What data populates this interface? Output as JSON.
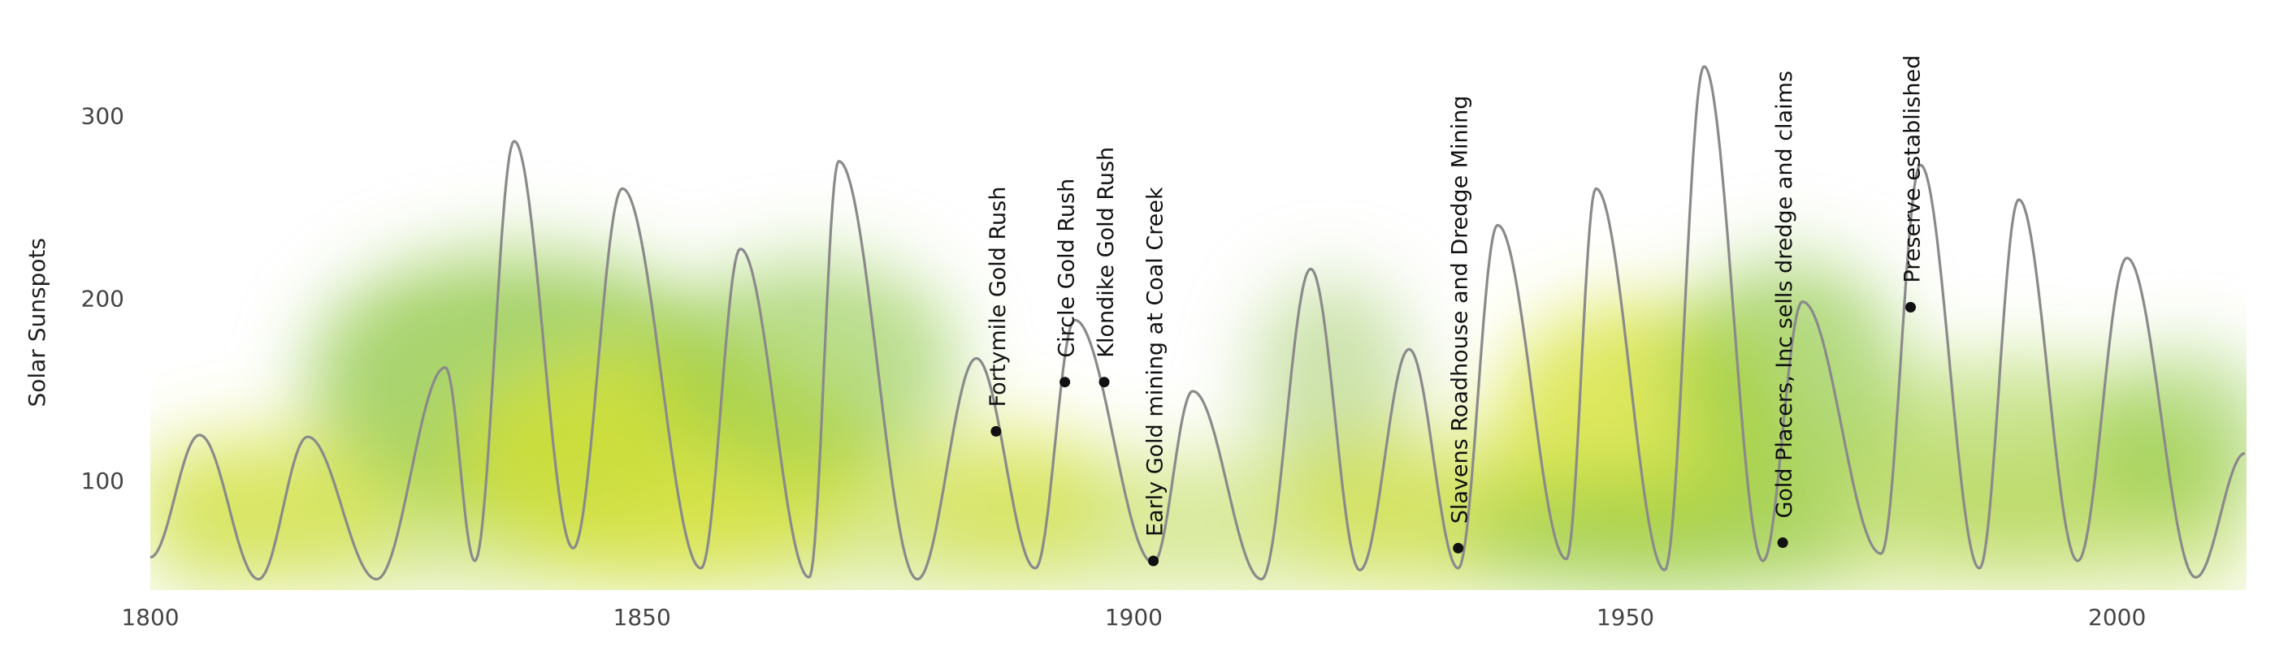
{
  "chart_data": {
    "type": "line",
    "title": "",
    "xlabel": "",
    "ylabel": "Solar Sunspots",
    "xlim": [
      1800,
      2013
    ],
    "ylim": [
      40,
      330
    ],
    "x_ticks": [
      1800,
      1850,
      1900,
      1950,
      2000
    ],
    "y_ticks": [
      100,
      200,
      300
    ],
    "grid": false,
    "legend": "none",
    "line_color": "#8a8a8a",
    "background_gradient": [
      "#d8e63a",
      "#8cc63f",
      "#ffffff"
    ],
    "series": [
      {
        "x": [
          1800,
          1805,
          1811,
          1816,
          1823,
          1830,
          1833,
          1837,
          1843,
          1848,
          1856,
          1860,
          1867,
          1870,
          1878,
          1884,
          1890,
          1894,
          1902,
          1906,
          1913,
          1918,
          1923,
          1928,
          1933,
          1937,
          1944,
          1947,
          1954,
          1958,
          1964,
          1968,
          1976,
          1980,
          1986,
          1990,
          1996,
          2001,
          2008,
          2013
        ],
        "y": [
          58,
          125,
          46,
          124,
          46,
          162,
          56,
          286,
          63,
          260,
          52,
          227,
          47,
          275,
          46,
          167,
          52,
          188,
          55,
          149,
          46,
          216,
          51,
          172,
          52,
          240,
          57,
          260,
          51,
          327,
          56,
          198,
          60,
          273,
          52,
          254,
          56,
          222,
          47,
          115
        ]
      }
    ],
    "events": [
      {
        "label": "Fortymile Gold Rush",
        "x": 1886,
        "y": 127
      },
      {
        "label": "Circle Gold Rush",
        "x": 1893,
        "y": 154
      },
      {
        "label": "Klondike Gold Rush",
        "x": 1897,
        "y": 154
      },
      {
        "label": "Early Gold mining at Coal Creek",
        "x": 1902,
        "y": 56
      },
      {
        "label": "Slavens Roadhouse and Dredge Mining",
        "x": 1933,
        "y": 63
      },
      {
        "label": "Gold Placers, Inc sells dredge and claims",
        "x": 1966,
        "y": 66
      },
      {
        "label": "Preserve established",
        "x": 1979,
        "y": 195
      }
    ]
  }
}
